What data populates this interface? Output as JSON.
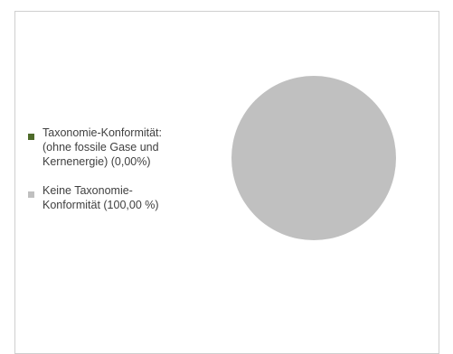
{
  "chart_data": {
    "type": "pie",
    "legend_placement": "left",
    "slices": [
      {
        "label": "Taxonomie-Konformität:\n(ohne fossile Gase und\nKernenergie) (0,00%)",
        "value": 0.0,
        "color": "#4e6b2a"
      },
      {
        "label": "Keine Taxonomie-\nKonformität (100,00 %)",
        "value": 100.0,
        "color": "#c0c0c0"
      }
    ]
  }
}
